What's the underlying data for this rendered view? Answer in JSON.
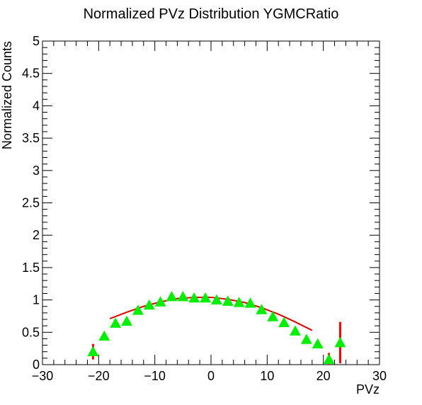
{
  "chart_data": {
    "type": "scatter",
    "title": "Normalized PVz Distribution YGMCRatio",
    "xlabel": "PVz",
    "ylabel": "Normalized Counts",
    "xlim": [
      -30,
      30
    ],
    "ylim": [
      0,
      5
    ],
    "x_ticks": [
      -30,
      -20,
      -10,
      0,
      10,
      20,
      30
    ],
    "x_tick_labels": [
      "−30",
      "−20",
      "−10",
      "0",
      "10",
      "20",
      "30"
    ],
    "y_ticks": [
      0,
      0.5,
      1,
      1.5,
      2,
      2.5,
      3,
      3.5,
      4,
      4.5,
      5
    ],
    "y_tick_labels": [
      "0",
      "0.5",
      "1",
      "1.5",
      "2",
      "2.5",
      "3",
      "3.5",
      "4",
      "4.5",
      "5"
    ],
    "grid": false,
    "marker": "triangle-up",
    "marker_color": "#00ee00",
    "error_color": "#ff0000",
    "fit_color": "#dd0000",
    "series": [
      {
        "x": [
          -21,
          -19,
          -17,
          -15,
          -13,
          -11,
          -9,
          -7,
          -5,
          -3,
          -1,
          1,
          3,
          5,
          7,
          9,
          11,
          13,
          15,
          17,
          19,
          21,
          23
        ],
        "y": [
          0.2,
          0.44,
          0.64,
          0.67,
          0.84,
          0.92,
          0.97,
          1.05,
          1.05,
          1.03,
          1.03,
          1.0,
          0.98,
          0.96,
          0.95,
          0.85,
          0.74,
          0.65,
          0.52,
          0.39,
          0.32,
          0.08,
          0.34
        ],
        "err": [
          0.12,
          0.05,
          0.03,
          0.03,
          0.03,
          0.02,
          0.02,
          0.02,
          0.02,
          0.02,
          0.02,
          0.02,
          0.02,
          0.02,
          0.02,
          0.02,
          0.03,
          0.03,
          0.03,
          0.04,
          0.06,
          0.1,
          0.32
        ]
      }
    ],
    "fit": {
      "x": [
        -18,
        -15,
        -12,
        -9,
        -6,
        -3,
        0,
        3,
        6,
        9,
        12,
        15,
        18
      ],
      "y": [
        0.71,
        0.81,
        0.9,
        0.97,
        1.02,
        1.04,
        1.04,
        1.01,
        0.96,
        0.88,
        0.78,
        0.66,
        0.53
      ]
    }
  }
}
